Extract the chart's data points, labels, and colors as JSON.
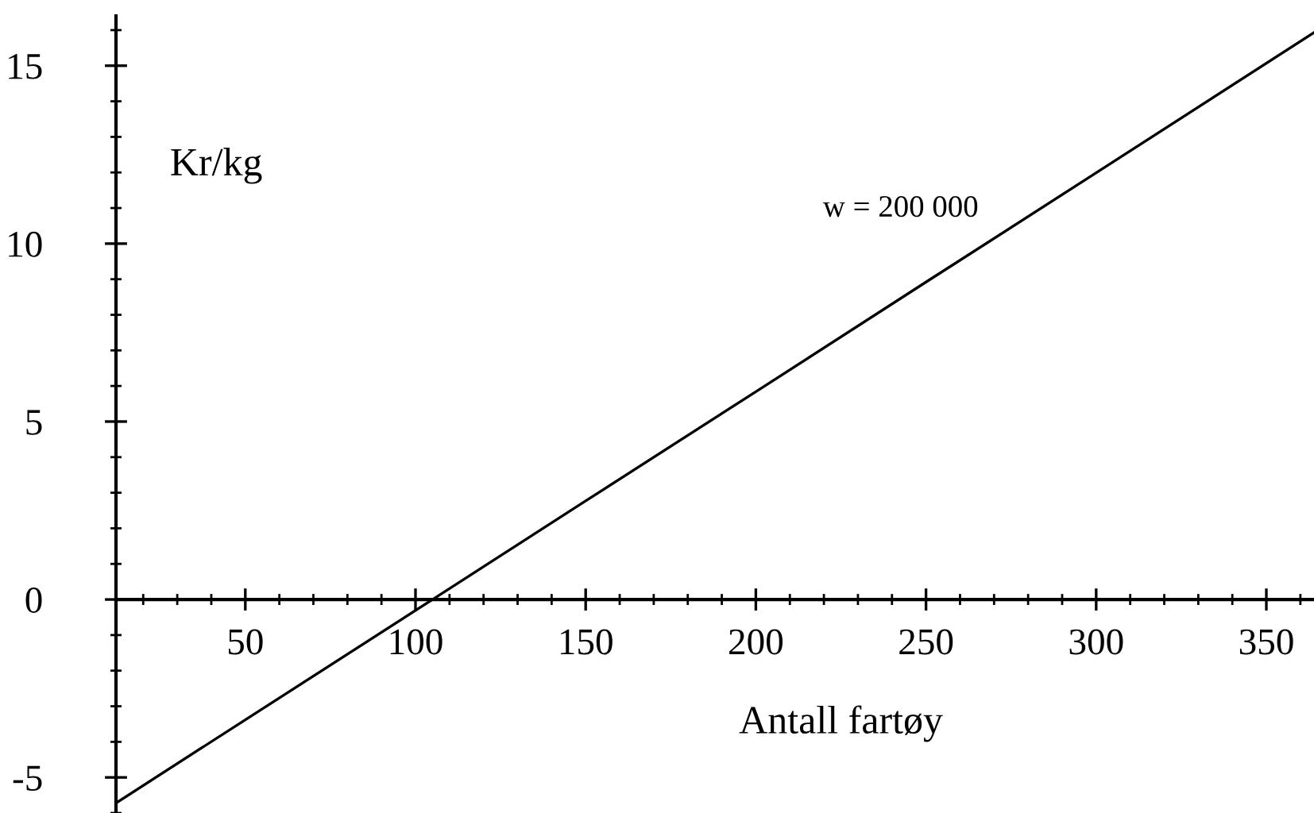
{
  "chart_data": {
    "type": "line",
    "xlabel": "Antall fartøy",
    "ylabel": "Kr/kg",
    "x": [
      12,
      50,
      105,
      150,
      200,
      250,
      300,
      364
    ],
    "series": [
      {
        "color": "#000000",
        "values": [
          -5.72,
          -3.38,
          0,
          2.77,
          5.84,
          8.92,
          11.99,
          15.93
        ]
      }
    ],
    "xlim": [
      12,
      364
    ],
    "xticks": [
      50,
      100,
      150,
      200,
      250,
      300,
      350
    ],
    "ylim": [
      -6,
      16.4
    ],
    "yticks": [
      -5,
      0,
      5,
      10,
      15
    ],
    "annotations": [
      "w = 200 000"
    ],
    "grid": false,
    "legend": false
  }
}
